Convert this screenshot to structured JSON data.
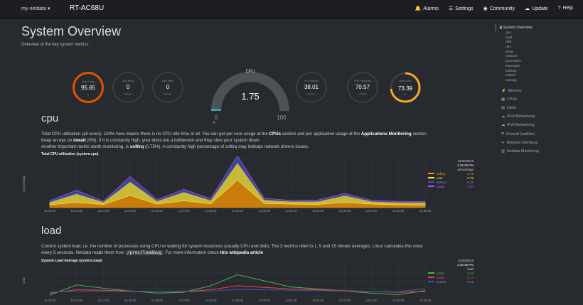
{
  "topbar": {
    "host": "my-netdata ▾",
    "title": "RT-AC68U",
    "nav": [
      {
        "icon": "bell-icon",
        "glyph": "🔔",
        "label": "Alarms"
      },
      {
        "icon": "sliders-icon",
        "glyph": "☰",
        "label": "Settings"
      },
      {
        "icon": "github-icon",
        "glyph": "◉",
        "label": "Community"
      },
      {
        "icon": "cloud-download-icon",
        "glyph": "☁",
        "label": "Update"
      },
      {
        "icon": "question-icon",
        "glyph": "?",
        "label": "Help"
      }
    ]
  },
  "page": {
    "title": "System Overview",
    "subtitle": "Overview of the key system metrics."
  },
  "gauges": [
    {
      "title": "Disk Read",
      "value": "0",
      "unit": "kilobytes",
      "accent": "#8bc34a"
    },
    {
      "title": "Disk Write",
      "value": "0",
      "unit": "kilobytes",
      "accent": "#ff5722"
    },
    {
      "title": "IPv4 Inbound",
      "value": "38.01",
      "unit": "kilobits/s",
      "accent": "#8bc34a"
    },
    {
      "title": "IPv4 Outbound",
      "value": "70.57",
      "unit": "kilobits/s",
      "accent": "#ff5722"
    }
  ],
  "swap_gauge": {
    "title": "Used Swap",
    "value": "95.65",
    "unit": "%",
    "accent": "#e65100"
  },
  "ram_gauge": {
    "title": "Used RAM",
    "value": "73.39",
    "unit": "%",
    "accent": "#f9a825",
    "level": 0.7339
  },
  "cpu_gauge": {
    "title": "CPU",
    "value": "1.75",
    "min": "0",
    "max": "100",
    "unit": "%",
    "level": 0.0175
  },
  "cpu_section": {
    "heading": "cpu",
    "p1a": "Total CPU utilization (all cores). 100% here means there is no CPU idle time at all. You can get per core usage at the ",
    "p1b": "CPUs",
    "p1c": " section and per application usage at the ",
    "p1d": "Applications Monitoring",
    "p1e": " section.",
    "p2a": "Keep an eye on ",
    "p2b": "iowait",
    "p2c": " (0%). If it is constantly high, your disks are a bottleneck and they slow your system down.",
    "p3a": "Another important metric worth monitoring, is ",
    "p3b": "softirq",
    "p3c": " (0.75%). A constantly high percentage of softirq may indicate network drivers issues.",
    "chart_title": "Total CPU utilization (system.cpu)",
    "ylabel": "percentage",
    "date": "12/26/2018",
    "time": "2:36:38 PM",
    "unit_label": "percentage",
    "legend": [
      {
        "name": "softirq",
        "value": "0.75",
        "color": "#ff9800"
      },
      {
        "name": "user",
        "value": "0.75",
        "color": "#ffeb3b"
      },
      {
        "name": "system",
        "value": "0.25",
        "color": "#3f51b5"
      },
      {
        "name": "iowait",
        "value": "0.00",
        "color": "#e040fb"
      }
    ],
    "xticks": [
      "14:22:00",
      "14:23:00",
      "14:24:00",
      "14:25:00",
      "14:26:00",
      "14:27:00",
      "14:28:00",
      "14:29:00",
      "14:30:00",
      "14:31:00",
      "14:32:00",
      "14:33:00",
      "14:34:00",
      "14:35:00",
      "14:36:00"
    ]
  },
  "load_section": {
    "heading": "load",
    "p1": "Current system load, i.e. the number of processes using CPU or waiting for system resources (usually CPU and disk). The 3 metrics refer to 1, 5 and 15 minute averages. Linux calculates this once",
    "p2a": "every 5 seconds. Netdata reads them from ",
    "p2b": "/proc/loadavg",
    "p2c": ". For more information check ",
    "p2d": "this wikipedia article",
    "chart_title": "System Load Average (system.load)",
    "ylabel": "load",
    "date": "12/26/2018",
    "time": "2:36:38 PM",
    "unit_label": "load",
    "legend": [
      {
        "name": "load1",
        "value": "0.16",
        "color": "#4caf50"
      },
      {
        "name": "load5",
        "value": "0.14",
        "color": "#f44336"
      },
      {
        "name": "load15",
        "value": "0.21",
        "color": "#3f51b5"
      }
    ],
    "xticks": [
      "14:22:00",
      "14:23:00",
      "14:24:00",
      "14:25:00",
      "14:26:00",
      "14:27:00",
      "14:28:00",
      "14:29:00",
      "14:30:00",
      "14:31:00",
      "14:32:00",
      "14:33:00",
      "14:34:00",
      "14:35:00",
      "14:36:00"
    ]
  },
  "sidebar": {
    "active": "System Overview",
    "subs": [
      "cpu",
      "load",
      "disk",
      "ram",
      "swap",
      "network",
      "processes",
      "interrupts",
      "softirqs",
      "softnet",
      "entropy"
    ],
    "items": [
      {
        "icon": "bolt-icon",
        "glyph": "⚡",
        "label": "Memory"
      },
      {
        "icon": "cpu-icon",
        "glyph": "▦",
        "label": "CPUs"
      },
      {
        "icon": "disk-icon",
        "glyph": "▤",
        "label": "Disks"
      },
      {
        "icon": "cloud-icon",
        "glyph": "☁",
        "label": "IPv4 Networking"
      },
      {
        "icon": "cloud-icon",
        "glyph": "☁",
        "label": "IPv6 Networking"
      },
      {
        "icon": "shield-icon",
        "glyph": "⛨",
        "label": "Firewall (netfilter)"
      },
      {
        "icon": "share-icon",
        "glyph": "⋖",
        "label": "Network Interfaces"
      },
      {
        "icon": "chart-icon",
        "glyph": "▥",
        "label": "Netdata Monitoring"
      }
    ]
  },
  "chart_data": [
    {
      "type": "area",
      "title": "Total CPU utilization (system.cpu)",
      "ylabel": "percentage",
      "ylim": [
        0,
        14
      ],
      "x": [
        "14:22:00",
        "14:23:00",
        "14:24:00",
        "14:25:00",
        "14:26:00",
        "14:27:00",
        "14:28:00",
        "14:29:00",
        "14:30:00",
        "14:31:00",
        "14:32:00",
        "14:33:00",
        "14:34:00",
        "14:35:00",
        "14:36:00"
      ],
      "series": [
        {
          "name": "softirq",
          "values": [
            0.8,
            1.5,
            0.9,
            3.5,
            1.0,
            2.0,
            1.1,
            8.0,
            1.2,
            1.0,
            0.9,
            1.5,
            1.0,
            0.8,
            0.75
          ]
        },
        {
          "name": "user",
          "values": [
            0.8,
            2.5,
            0.7,
            4.0,
            0.9,
            2.5,
            1.0,
            5.0,
            1.0,
            0.8,
            0.9,
            2.0,
            0.8,
            0.7,
            0.75
          ]
        },
        {
          "name": "system",
          "values": [
            0.4,
            1.0,
            0.3,
            1.5,
            0.4,
            0.8,
            0.5,
            2.0,
            0.5,
            0.3,
            0.4,
            0.6,
            0.3,
            0.3,
            0.25
          ]
        },
        {
          "name": "iowait",
          "values": [
            0,
            0,
            0,
            0,
            0,
            0,
            0,
            0,
            0,
            0,
            0,
            0,
            0,
            0,
            0
          ]
        }
      ]
    },
    {
      "type": "line",
      "title": "System Load Average (system.load)",
      "ylabel": "load",
      "ylim": [
        0,
        0.8
      ],
      "x": [
        "14:22:00",
        "14:23:00",
        "14:24:00",
        "14:25:00",
        "14:26:00",
        "14:27:00",
        "14:28:00",
        "14:29:00",
        "14:30:00",
        "14:31:00",
        "14:32:00",
        "14:33:00",
        "14:34:00",
        "14:35:00",
        "14:36:00"
      ],
      "series": [
        {
          "name": "load1",
          "values": [
            0.05,
            0.3,
            0.22,
            0.15,
            0.1,
            0.12,
            0.28,
            0.55,
            0.4,
            0.25,
            0.2,
            0.15,
            0.1,
            0.06,
            0.16
          ]
        },
        {
          "name": "load5",
          "values": [
            0.1,
            0.18,
            0.17,
            0.15,
            0.13,
            0.14,
            0.18,
            0.28,
            0.24,
            0.2,
            0.18,
            0.16,
            0.14,
            0.12,
            0.14
          ]
        },
        {
          "name": "load15",
          "values": [
            0.12,
            0.15,
            0.15,
            0.14,
            0.13,
            0.13,
            0.15,
            0.19,
            0.18,
            0.17,
            0.16,
            0.15,
            0.14,
            0.13,
            0.21
          ]
        }
      ]
    }
  ]
}
